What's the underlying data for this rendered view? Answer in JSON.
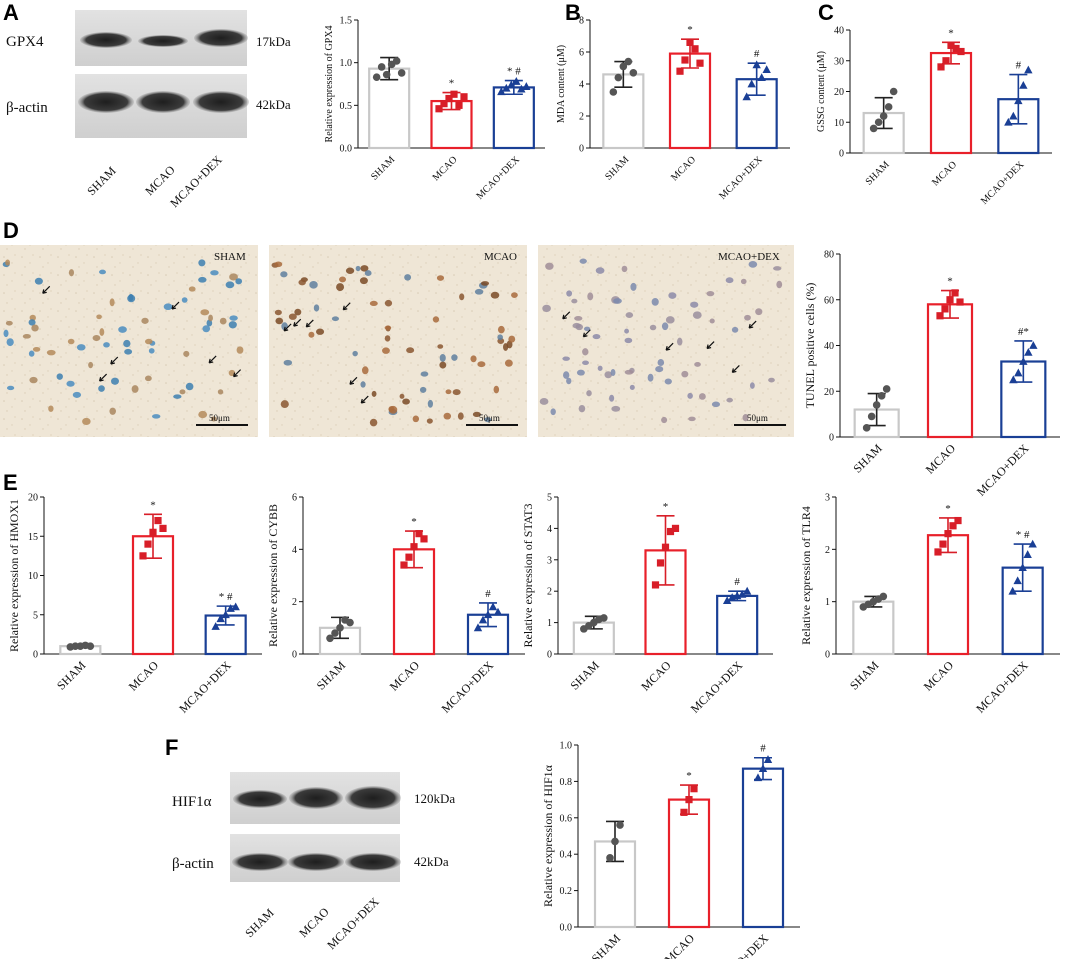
{
  "panel_letters": [
    "A",
    "B",
    "C",
    "D",
    "E",
    "F"
  ],
  "group_labels": [
    "SHAM",
    "MCAO",
    "MCAO+DEX"
  ],
  "colors": {
    "SHAM": "#c8c8c8",
    "MCAO": "#e8202a",
    "MCAO+DEX": "#1a3f95",
    "SHAM_marker": "#555555",
    "MCAO_marker": "#d81e28",
    "DEX_marker": "#1a3f95"
  },
  "blot_A": {
    "bands": [
      "GPX4",
      "β-actin"
    ],
    "sizes": [
      "17kDa",
      "42kDa"
    ]
  },
  "blot_F": {
    "bands": [
      "HIF1α",
      "β-actin"
    ],
    "sizes": [
      "120kDa",
      "42kDa"
    ]
  },
  "micrographs": {
    "labels": [
      "SHAM",
      "MCAO",
      "MCAO+DEX"
    ],
    "scale_bar": "50μm"
  },
  "chart_data": [
    {
      "id": "gpx4",
      "type": "bar",
      "categories": [
        "SHAM",
        "MCAO",
        "MCAO+DEX"
      ],
      "ylabel": "Relative expression of GPX4",
      "ylim": [
        0,
        1.5
      ],
      "yticks": [
        "0.0",
        "0.5",
        "1.0",
        "1.5"
      ],
      "values": [
        0.93,
        0.55,
        0.71
      ],
      "errors": [
        0.13,
        0.1,
        0.08
      ],
      "points": [
        [
          0.83,
          0.95,
          0.86,
          0.98,
          1.02,
          0.88
        ],
        [
          0.46,
          0.52,
          0.58,
          0.63,
          0.5,
          0.6
        ],
        [
          0.66,
          0.7,
          0.74,
          0.78,
          0.69,
          0.72
        ]
      ],
      "marks": [
        "",
        "*",
        "* #"
      ]
    },
    {
      "id": "mda",
      "type": "bar",
      "categories": [
        "SHAM",
        "MCAO",
        "MCAO+DEX"
      ],
      "ylabel": "MDA content (μM)",
      "ylim": [
        0,
        8
      ],
      "yticks": [
        "0",
        "2",
        "4",
        "6",
        "8"
      ],
      "values": [
        4.6,
        5.9,
        4.3
      ],
      "errors": [
        0.8,
        0.9,
        1.0
      ],
      "points": [
        [
          3.5,
          4.4,
          5.1,
          5.4,
          4.7
        ],
        [
          4.8,
          5.5,
          6.6,
          6.2,
          5.3
        ],
        [
          3.2,
          4.0,
          5.2,
          4.4,
          4.9
        ]
      ],
      "marks": [
        "",
        "*",
        "#"
      ]
    },
    {
      "id": "gssg",
      "type": "bar",
      "categories": [
        "SHAM",
        "MCAO",
        "MCAO+DEX"
      ],
      "ylabel": "GSSG content (μM)",
      "ylim": [
        0,
        40
      ],
      "yticks": [
        "0",
        "10",
        "20",
        "30",
        "40"
      ],
      "values": [
        13,
        32.5,
        17.5
      ],
      "errors": [
        5,
        3.5,
        8
      ],
      "points": [
        [
          8,
          10,
          12,
          15,
          20
        ],
        [
          28,
          30,
          35,
          34,
          33
        ],
        [
          10,
          12,
          17,
          22,
          27
        ]
      ],
      "marks": [
        "",
        "*",
        "#"
      ]
    },
    {
      "id": "tunel",
      "type": "bar",
      "categories": [
        "SHAM",
        "MCAO",
        "MCAO+DEX"
      ],
      "ylabel": "TUNEL positive cells (%)",
      "ylim": [
        0,
        80
      ],
      "yticks": [
        "0",
        "20",
        "40",
        "60",
        "80"
      ],
      "values": [
        12,
        58,
        33
      ],
      "errors": [
        7,
        6,
        9
      ],
      "points": [
        [
          4,
          9,
          14,
          18,
          21
        ],
        [
          53,
          56,
          60,
          63,
          59
        ],
        [
          25,
          28,
          33,
          37,
          40
        ]
      ],
      "marks": [
        "",
        "*",
        "#*"
      ]
    },
    {
      "id": "hmox1",
      "type": "bar",
      "categories": [
        "SHAM",
        "MCAO",
        "MCAO+DEX"
      ],
      "ylabel": "Relative expression of HMOX1",
      "ylim": [
        0,
        20
      ],
      "yticks": [
        "0",
        "5",
        "10",
        "15",
        "20"
      ],
      "values": [
        1,
        15,
        4.9
      ],
      "errors": [
        0.1,
        2.8,
        1.2
      ],
      "points": [
        [
          0.9,
          1,
          1,
          1.1,
          1
        ],
        [
          12.5,
          14,
          15.5,
          17,
          16
        ],
        [
          3.5,
          4.5,
          5,
          5.8,
          6
        ]
      ],
      "marks": [
        "",
        "*",
        "* #"
      ]
    },
    {
      "id": "cybb",
      "type": "bar",
      "categories": [
        "SHAM",
        "MCAO",
        "MCAO+DEX"
      ],
      "ylabel": "Relative expression of CYBB",
      "ylim": [
        0,
        6
      ],
      "yticks": [
        "0",
        "2",
        "4",
        "6"
      ],
      "values": [
        1,
        4,
        1.5
      ],
      "errors": [
        0.4,
        0.7,
        0.45
      ],
      "points": [
        [
          0.6,
          0.8,
          1,
          1.3,
          1.2
        ],
        [
          3.4,
          3.7,
          4.1,
          4.6,
          4.4
        ],
        [
          1.0,
          1.3,
          1.5,
          1.8,
          1.6
        ]
      ],
      "marks": [
        "",
        "*",
        "#"
      ]
    },
    {
      "id": "stat3",
      "type": "bar",
      "categories": [
        "SHAM",
        "MCAO",
        "MCAO+DEX"
      ],
      "ylabel": "Relative expression of STAT3",
      "ylim": [
        0,
        5
      ],
      "yticks": [
        "0",
        "1",
        "2",
        "3",
        "4",
        "5"
      ],
      "values": [
        1,
        3.3,
        1.85
      ],
      "errors": [
        0.2,
        1.1,
        0.15
      ],
      "points": [
        [
          0.8,
          0.9,
          1.0,
          1.1,
          1.15
        ],
        [
          2.2,
          2.9,
          3.4,
          3.9,
          4.0
        ],
        [
          1.7,
          1.8,
          1.85,
          1.9,
          2.0
        ]
      ],
      "marks": [
        "",
        "*",
        "#"
      ]
    },
    {
      "id": "tlr4",
      "type": "bar",
      "categories": [
        "SHAM",
        "MCAO",
        "MCAO+DEX"
      ],
      "ylabel": "Relative expression of TLR4",
      "ylim": [
        0,
        3
      ],
      "yticks": [
        "0",
        "1",
        "2",
        "3"
      ],
      "values": [
        1,
        2.27,
        1.65
      ],
      "errors": [
        0.1,
        0.33,
        0.45
      ],
      "points": [
        [
          0.9,
          0.95,
          1.0,
          1.05,
          1.1
        ],
        [
          1.95,
          2.1,
          2.3,
          2.45,
          2.55
        ],
        [
          1.2,
          1.4,
          1.65,
          1.9,
          2.1
        ]
      ],
      "marks": [
        "",
        "*",
        "* #"
      ]
    },
    {
      "id": "hif1a",
      "type": "bar",
      "categories": [
        "SHAM",
        "MCAO",
        "MCAO+DEX"
      ],
      "ylabel": "Relative expression of HIF1α",
      "ylim": [
        0,
        1.0
      ],
      "yticks": [
        "0.0",
        "0.2",
        "0.4",
        "0.6",
        "0.8",
        "1.0"
      ],
      "values": [
        0.47,
        0.7,
        0.87
      ],
      "errors": [
        0.11,
        0.08,
        0.06
      ],
      "points": [
        [
          0.38,
          0.47,
          0.56
        ],
        [
          0.63,
          0.7,
          0.76
        ],
        [
          0.82,
          0.87,
          0.92
        ]
      ],
      "marks": [
        "",
        "*",
        "#"
      ]
    }
  ]
}
